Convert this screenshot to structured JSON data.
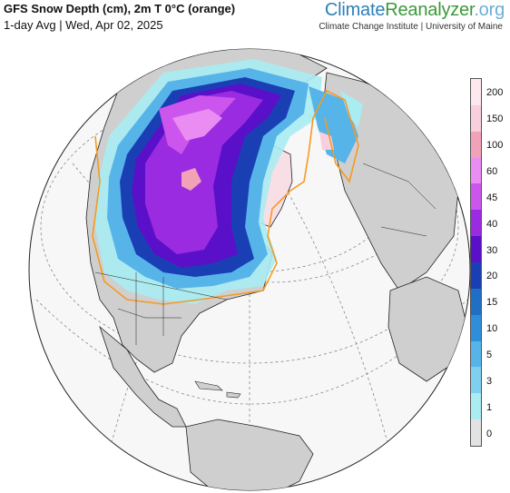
{
  "header": {
    "title": "GFS Snow Depth (cm), 2m T 0°C (orange)",
    "subtitle": "1-day Avg | Wed, Apr 02, 2025"
  },
  "brand": {
    "part1": "Climate",
    "part2": "Reanalyzer",
    "part3": ".org",
    "institute": "Climate Change Institute | University of Maine"
  },
  "legend": {
    "items": [
      {
        "label": "0",
        "color": "#e2e2e2"
      },
      {
        "label": "1",
        "color": "#a9ecf2"
      },
      {
        "label": "3",
        "color": "#7ed0ee"
      },
      {
        "label": "5",
        "color": "#56b4e9"
      },
      {
        "label": "10",
        "color": "#2e8ed8"
      },
      {
        "label": "15",
        "color": "#1f6fc4"
      },
      {
        "label": "20",
        "color": "#1a3fb4"
      },
      {
        "label": "30",
        "color": "#5a10c8"
      },
      {
        "label": "40",
        "color": "#9a2be0"
      },
      {
        "label": "45",
        "color": "#cc55ee"
      },
      {
        "label": "60",
        "color": "#e98df3"
      },
      {
        "label": "100",
        "color": "#f2a2b8"
      },
      {
        "label": "150",
        "color": "#f8cfdc"
      },
      {
        "label": "200",
        "color": "#fde8ee"
      }
    ]
  },
  "map_colors": {
    "ocean": "#f7f7f7",
    "land": "#cfcfcf",
    "border": "#222222",
    "freezing_line": "#f59a23",
    "graticule": "#888888"
  }
}
